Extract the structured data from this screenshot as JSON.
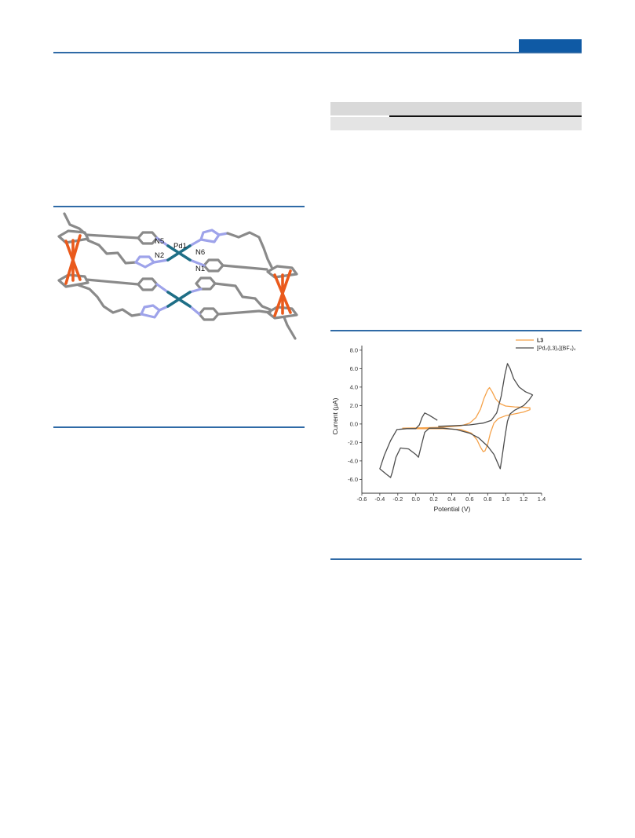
{
  "colors": {
    "accent": "#0f5aa5",
    "bond": "#8a8a8a",
    "nitrogen": "#9ea3ea",
    "palladium": "#1e6e86",
    "iron": "#ea5a1c"
  },
  "figure_structure": {
    "atom_labels": {
      "n5": "N5",
      "pd1": "Pd1",
      "n6": "N6",
      "n2": "N2",
      "n1": "N1"
    }
  },
  "chart_data": {
    "type": "line",
    "xlabel": "Potential (V)",
    "ylabel": "Current (μA)",
    "xlim": [
      -0.6,
      1.4
    ],
    "ylim": [
      -7.5,
      8.5
    ],
    "xticks": [
      -0.6,
      -0.4,
      -0.2,
      0.0,
      0.2,
      0.4,
      0.6,
      0.8,
      1.0,
      1.2,
      1.4
    ],
    "xtick_labels": [
      "-0.6",
      "-0.4",
      "-0.2",
      "0.0",
      "0.2",
      "0.4",
      "0.6",
      "0.8",
      "1.0",
      "1.2",
      "1.4"
    ],
    "yticks": [
      -6,
      -4,
      -2,
      0,
      2,
      4,
      6,
      8
    ],
    "ytick_labels": [
      "-6.0",
      "-4.0",
      "-2.0",
      "0.0",
      "2.0",
      "4.0",
      "6.0",
      "8.0"
    ],
    "grid": false,
    "legend": "top-right",
    "series": [
      {
        "name": "L3",
        "color": "#f5a24a",
        "points": [
          [
            -0.15,
            -0.45
          ],
          [
            0.1,
            -0.4
          ],
          [
            0.3,
            -0.35
          ],
          [
            0.5,
            -0.2
          ],
          [
            0.6,
            0.1
          ],
          [
            0.67,
            0.7
          ],
          [
            0.72,
            1.6
          ],
          [
            0.76,
            2.8
          ],
          [
            0.8,
            3.7
          ],
          [
            0.82,
            3.95
          ],
          [
            0.85,
            3.5
          ],
          [
            0.89,
            2.7
          ],
          [
            0.94,
            2.2
          ],
          [
            1.0,
            1.95
          ],
          [
            1.1,
            1.85
          ],
          [
            1.2,
            1.8
          ],
          [
            1.27,
            1.75
          ],
          [
            1.27,
            1.55
          ],
          [
            1.2,
            1.3
          ],
          [
            1.1,
            1.1
          ],
          [
            1.0,
            0.9
          ],
          [
            0.92,
            0.6
          ],
          [
            0.87,
            0.1
          ],
          [
            0.83,
            -1.0
          ],
          [
            0.8,
            -2.2
          ],
          [
            0.77,
            -2.9
          ],
          [
            0.75,
            -3.0
          ],
          [
            0.72,
            -2.5
          ],
          [
            0.68,
            -1.7
          ],
          [
            0.62,
            -1.0
          ],
          [
            0.5,
            -0.6
          ],
          [
            0.3,
            -0.5
          ],
          [
            0.1,
            -0.5
          ],
          [
            -0.15,
            -0.5
          ]
        ]
      },
      {
        "name": "[Pd₂(L3)₂](BF₄)₄",
        "color": "#4d4d4d",
        "points": [
          [
            0.25,
            -0.25
          ],
          [
            0.4,
            -0.2
          ],
          [
            0.6,
            -0.1
          ],
          [
            0.75,
            0.1
          ],
          [
            0.84,
            0.4
          ],
          [
            0.9,
            1.2
          ],
          [
            0.95,
            3.0
          ],
          [
            0.99,
            5.3
          ],
          [
            1.02,
            6.55
          ],
          [
            1.05,
            6.0
          ],
          [
            1.09,
            4.9
          ],
          [
            1.15,
            4.0
          ],
          [
            1.22,
            3.5
          ],
          [
            1.28,
            3.25
          ],
          [
            1.3,
            3.15
          ],
          [
            1.26,
            2.6
          ],
          [
            1.2,
            2.0
          ],
          [
            1.1,
            1.5
          ],
          [
            1.05,
            1.1
          ],
          [
            1.02,
            0.3
          ],
          [
            0.99,
            -1.5
          ],
          [
            0.96,
            -3.6
          ],
          [
            0.94,
            -4.85
          ],
          [
            0.91,
            -4.2
          ],
          [
            0.87,
            -3.3
          ],
          [
            0.8,
            -2.4
          ],
          [
            0.7,
            -1.5
          ],
          [
            0.6,
            -1.0
          ],
          [
            0.45,
            -0.6
          ],
          [
            0.3,
            -0.45
          ],
          [
            0.15,
            -0.45
          ],
          [
            0.1,
            -0.9
          ],
          [
            0.06,
            -2.4
          ],
          [
            0.03,
            -3.6
          ],
          [
            0.0,
            -3.3
          ],
          [
            -0.08,
            -2.7
          ],
          [
            -0.17,
            -2.6
          ],
          [
            -0.22,
            -3.6
          ],
          [
            -0.26,
            -5.2
          ],
          [
            -0.28,
            -5.8
          ],
          [
            -0.32,
            -5.5
          ],
          [
            -0.37,
            -5.1
          ],
          [
            -0.4,
            -4.85
          ],
          [
            -0.35,
            -3.4
          ],
          [
            -0.28,
            -1.8
          ],
          [
            -0.21,
            -0.6
          ],
          [
            -0.1,
            -0.5
          ],
          [
            0.0,
            -0.5
          ],
          [
            0.04,
            -0.1
          ],
          [
            0.07,
            0.7
          ],
          [
            0.1,
            1.2
          ],
          [
            0.14,
            1.0
          ],
          [
            0.19,
            0.7
          ],
          [
            0.24,
            0.4
          ]
        ]
      }
    ]
  }
}
